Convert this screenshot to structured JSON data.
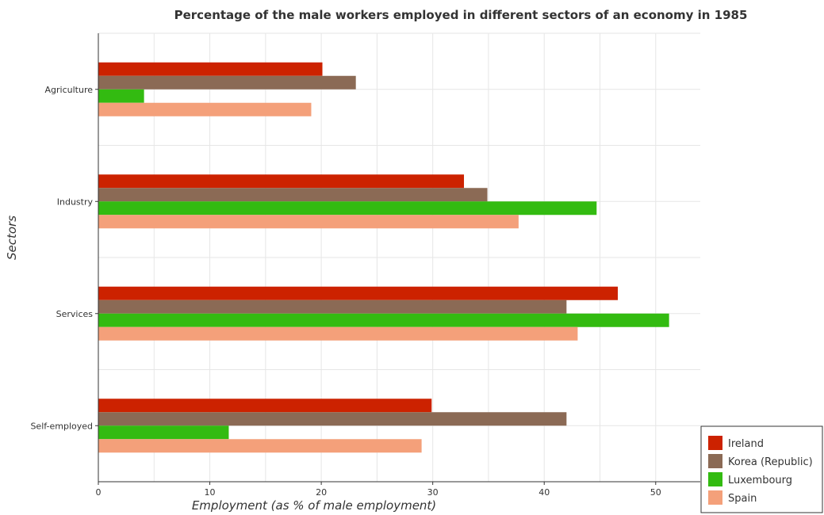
{
  "chart_data": {
    "type": "bar",
    "orientation": "horizontal",
    "title": "Percentage of the male workers employed in different sectors of an economy in 1985",
    "xlabel": "Employment (as % of male employment)",
    "ylabel": "Sectors",
    "xlim": [
      0,
      54
    ],
    "xticks": [
      0,
      10,
      20,
      30,
      40,
      50
    ],
    "grid": true,
    "legend_position": "bottom-right",
    "categories": [
      "Agriculture",
      "Industry",
      "Services",
      "Self-employed"
    ],
    "series": [
      {
        "name": "Ireland",
        "color": "#cc2200",
        "values": [
          20.1,
          32.8,
          46.6,
          29.9
        ]
      },
      {
        "name": "Korea (Republic)",
        "color": "#8b6a55",
        "values": [
          23.1,
          34.9,
          42.0,
          42.0
        ]
      },
      {
        "name": "Luxembourg",
        "color": "#33bb11",
        "values": [
          4.1,
          44.7,
          51.2,
          11.7
        ]
      },
      {
        "name": "Spain",
        "color": "#f4a07a",
        "values": [
          19.1,
          37.7,
          43.0,
          29.0
        ]
      }
    ]
  }
}
